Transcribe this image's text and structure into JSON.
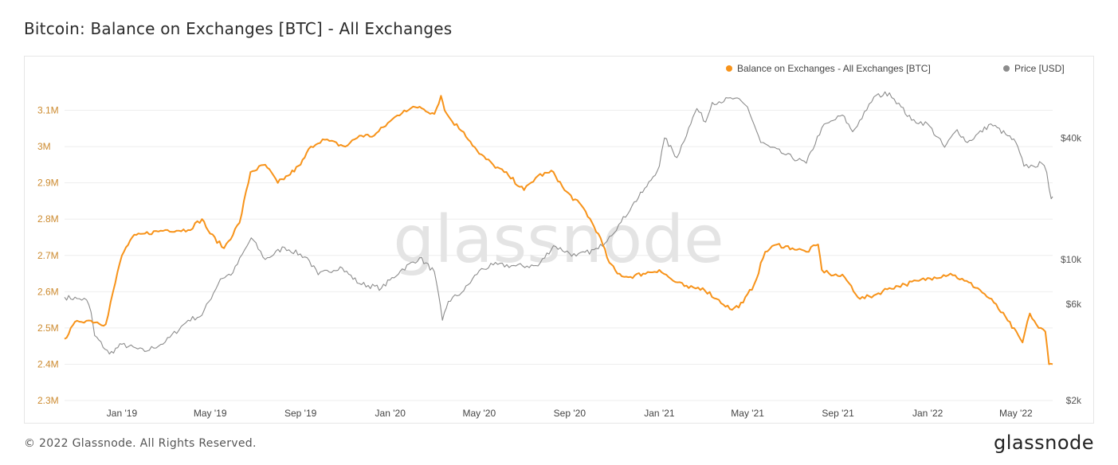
{
  "title": "Bitcoin: Balance on Exchanges [BTC] - All Exchanges",
  "footer": {
    "copyright": "© 2022 Glassnode. All Rights Reserved.",
    "brand": "glassnode",
    "watermark": "glassnode"
  },
  "colors": {
    "balance": "#f7931a",
    "price": "#8c8c8c",
    "grid": "#eeeeee",
    "axis_text": "#cc8a2e",
    "right_axis_text": "#555555",
    "watermark": "#e4e4e4"
  },
  "chart_data": {
    "type": "line",
    "title": "Bitcoin: Balance on Exchanges [BTC] - All Exchanges",
    "legend_placement": "top-right",
    "grid": true,
    "x_ticks": [
      "Jan '19",
      "May '19",
      "Sep '19",
      "Jan '20",
      "May '20",
      "Sep '20",
      "Jan '21",
      "May '21",
      "Sep '21",
      "Jan '22",
      "May '22"
    ],
    "x_range": [
      "2018-10-15",
      "2022-06-20"
    ],
    "y_left": {
      "label": "Balance on Exchanges - All Exchanges [BTC]",
      "ticks": [
        "2.3M",
        "2.4M",
        "2.5M",
        "2.6M",
        "2.7M",
        "2.8M",
        "2.9M",
        "3M",
        "3.1M"
      ],
      "tick_values": [
        2300000,
        2400000,
        2500000,
        2600000,
        2700000,
        2800000,
        2900000,
        3000000,
        3100000
      ],
      "range": [
        2300000,
        3200000
      ]
    },
    "y_right": {
      "label": "Price [USD]",
      "scale": "log",
      "ticks": [
        "$2k",
        "$6k",
        "$10k",
        "$40k"
      ],
      "tick_values": [
        2000,
        6000,
        10000,
        40000
      ],
      "range": [
        2000,
        83000
      ]
    },
    "series": [
      {
        "name": "Balance on Exchanges - All Exchanges [BTC]",
        "axis": "left",
        "x": [
          "2018-10-15",
          "2018-11-01",
          "2018-11-20",
          "2018-12-10",
          "2018-12-20",
          "2019-01-01",
          "2019-01-15",
          "2019-02-01",
          "2019-03-01",
          "2019-04-01",
          "2019-04-20",
          "2019-05-01",
          "2019-05-20",
          "2019-06-10",
          "2019-06-25",
          "2019-07-15",
          "2019-08-01",
          "2019-08-15",
          "2019-09-01",
          "2019-09-15",
          "2019-10-01",
          "2019-11-01",
          "2019-11-20",
          "2019-12-10",
          "2020-01-01",
          "2020-01-20",
          "2020-02-10",
          "2020-03-01",
          "2020-03-10",
          "2020-03-15",
          "2020-03-25",
          "2020-04-10",
          "2020-05-01",
          "2020-05-20",
          "2020-06-10",
          "2020-07-01",
          "2020-07-20",
          "2020-08-10",
          "2020-08-25",
          "2020-09-20",
          "2020-10-10",
          "2020-10-25",
          "2020-11-05",
          "2020-11-20",
          "2020-12-10",
          "2021-01-01",
          "2021-01-20",
          "2021-02-10",
          "2021-03-01",
          "2021-03-20",
          "2021-04-10",
          "2021-04-25",
          "2021-05-10",
          "2021-05-25",
          "2021-06-10",
          "2021-07-01",
          "2021-07-20",
          "2021-08-05",
          "2021-08-10",
          "2021-08-20",
          "2021-09-10",
          "2021-10-01",
          "2021-10-20",
          "2021-11-10",
          "2021-12-01",
          "2021-12-20",
          "2022-01-10",
          "2022-02-01",
          "2022-02-20",
          "2022-03-10",
          "2022-04-01",
          "2022-04-20",
          "2022-05-10",
          "2022-05-20",
          "2022-06-01",
          "2022-06-10",
          "2022-06-15",
          "2022-06-20"
        ],
        "values": [
          2470000,
          2520000,
          2520000,
          2510000,
          2600000,
          2700000,
          2750000,
          2760000,
          2770000,
          2770000,
          2800000,
          2760000,
          2720000,
          2790000,
          2930000,
          2950000,
          2900000,
          2920000,
          2950000,
          3000000,
          3020000,
          3000000,
          3030000,
          3030000,
          3070000,
          3100000,
          3110000,
          3090000,
          3140000,
          3100000,
          3070000,
          3040000,
          2980000,
          2950000,
          2920000,
          2880000,
          2920000,
          2930000,
          2880000,
          2830000,
          2760000,
          2680000,
          2650000,
          2640000,
          2650000,
          2660000,
          2630000,
          2610000,
          2610000,
          2580000,
          2550000,
          2570000,
          2620000,
          2710000,
          2730000,
          2720000,
          2710000,
          2730000,
          2660000,
          2650000,
          2640000,
          2580000,
          2590000,
          2610000,
          2620000,
          2630000,
          2640000,
          2650000,
          2630000,
          2610000,
          2570000,
          2520000,
          2460000,
          2540000,
          2500000,
          2490000,
          2400000,
          2400000
        ]
      },
      {
        "name": "Price [USD]",
        "axis": "right",
        "x": [
          "2018-10-15",
          "2018-11-01",
          "2018-11-14",
          "2018-11-20",
          "2018-11-25",
          "2018-12-15",
          "2019-01-01",
          "2019-02-01",
          "2019-03-01",
          "2019-04-01",
          "2019-04-20",
          "2019-05-15",
          "2019-06-01",
          "2019-06-26",
          "2019-07-15",
          "2019-08-10",
          "2019-09-10",
          "2019-09-25",
          "2019-10-25",
          "2019-11-20",
          "2019-12-20",
          "2020-01-15",
          "2020-02-10",
          "2020-03-01",
          "2020-03-12",
          "2020-03-20",
          "2020-04-10",
          "2020-05-01",
          "2020-05-20",
          "2020-06-20",
          "2020-07-20",
          "2020-08-10",
          "2020-09-10",
          "2020-10-10",
          "2020-10-25",
          "2020-11-10",
          "2020-11-25",
          "2020-12-15",
          "2021-01-01",
          "2021-01-08",
          "2021-01-25",
          "2021-02-10",
          "2021-02-21",
          "2021-03-05",
          "2021-03-14",
          "2021-04-14",
          "2021-05-01",
          "2021-05-19",
          "2021-06-01",
          "2021-06-22",
          "2021-07-20",
          "2021-08-10",
          "2021-09-07",
          "2021-09-21",
          "2021-10-10",
          "2021-10-20",
          "2021-11-10",
          "2021-11-26",
          "2021-12-10",
          "2022-01-01",
          "2022-01-24",
          "2022-02-10",
          "2022-02-24",
          "2022-03-28",
          "2022-04-20",
          "2022-05-01",
          "2022-05-12",
          "2022-05-25",
          "2022-06-05",
          "2022-06-12",
          "2022-06-18",
          "2022-06-20"
        ],
        "values": [
          6500,
          6400,
          6300,
          5500,
          4200,
          3400,
          3800,
          3500,
          3900,
          5000,
          5300,
          8000,
          8600,
          12800,
          10000,
          11500,
          10200,
          8400,
          9200,
          7600,
          7200,
          8800,
          10200,
          8700,
          5000,
          6200,
          7000,
          8800,
          9400,
          9300,
          9300,
          11700,
          10400,
          11300,
          13000,
          15300,
          18500,
          23000,
          29000,
          40000,
          32000,
          45000,
          56000,
          48000,
          60000,
          63000,
          57000,
          38000,
          36000,
          33000,
          30000,
          45000,
          52000,
          43000,
          55000,
          64000,
          67000,
          57000,
          49000,
          47000,
          36000,
          44000,
          38000,
          47000,
          41000,
          38000,
          29000,
          29000,
          30000,
          27000,
          20000,
          20500
        ]
      }
    ]
  }
}
